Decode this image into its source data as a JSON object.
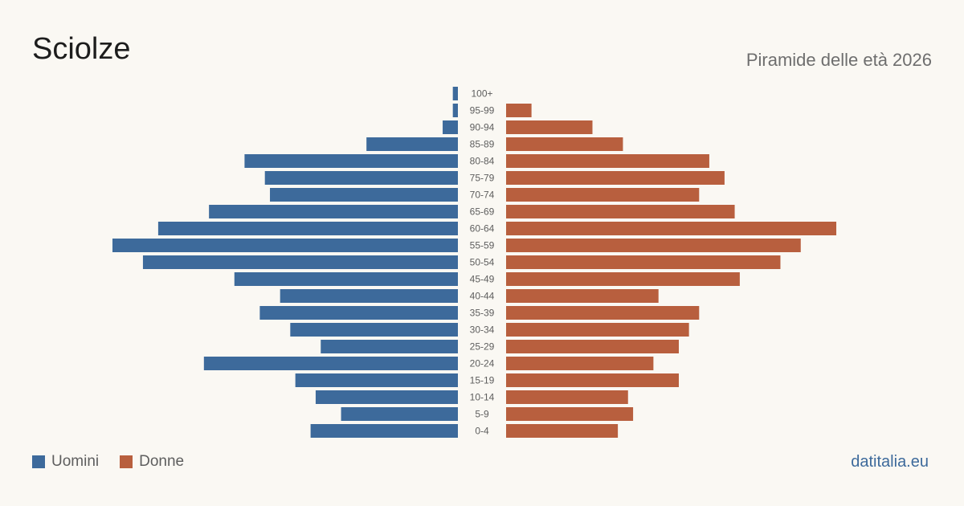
{
  "header": {
    "title": "Sciolze",
    "subtitle": "Piramide delle età 2026"
  },
  "legend": {
    "men_label": "Uomini",
    "women_label": "Donne"
  },
  "brand": "datitalia.eu",
  "colors": {
    "men": "#3d6a9b",
    "women": "#b85f3e",
    "background": "#faf8f3",
    "age_label": "#5e5e5e"
  },
  "chart_data": {
    "type": "bar",
    "orientation": "horizontal-pyramid",
    "categories": [
      "100+",
      "95-99",
      "90-94",
      "85-89",
      "80-84",
      "75-79",
      "70-74",
      "65-69",
      "60-64",
      "55-59",
      "50-54",
      "45-49",
      "40-44",
      "35-39",
      "30-34",
      "25-29",
      "20-24",
      "15-19",
      "10-14",
      "5-9",
      "0-4"
    ],
    "series": [
      {
        "name": "Uomini",
        "values": [
          1,
          1,
          3,
          18,
          42,
          38,
          37,
          49,
          59,
          68,
          62,
          44,
          35,
          39,
          33,
          27,
          50,
          32,
          28,
          23,
          29
        ]
      },
      {
        "name": "Donne",
        "values": [
          0,
          5,
          17,
          23,
          40,
          43,
          38,
          45,
          65,
          58,
          54,
          46,
          30,
          38,
          36,
          34,
          29,
          34,
          24,
          25,
          22
        ]
      }
    ],
    "title": "Piramide delle età 2026",
    "xlabel": "",
    "ylabel": "",
    "grid": false,
    "legend_position": "bottom-left"
  }
}
